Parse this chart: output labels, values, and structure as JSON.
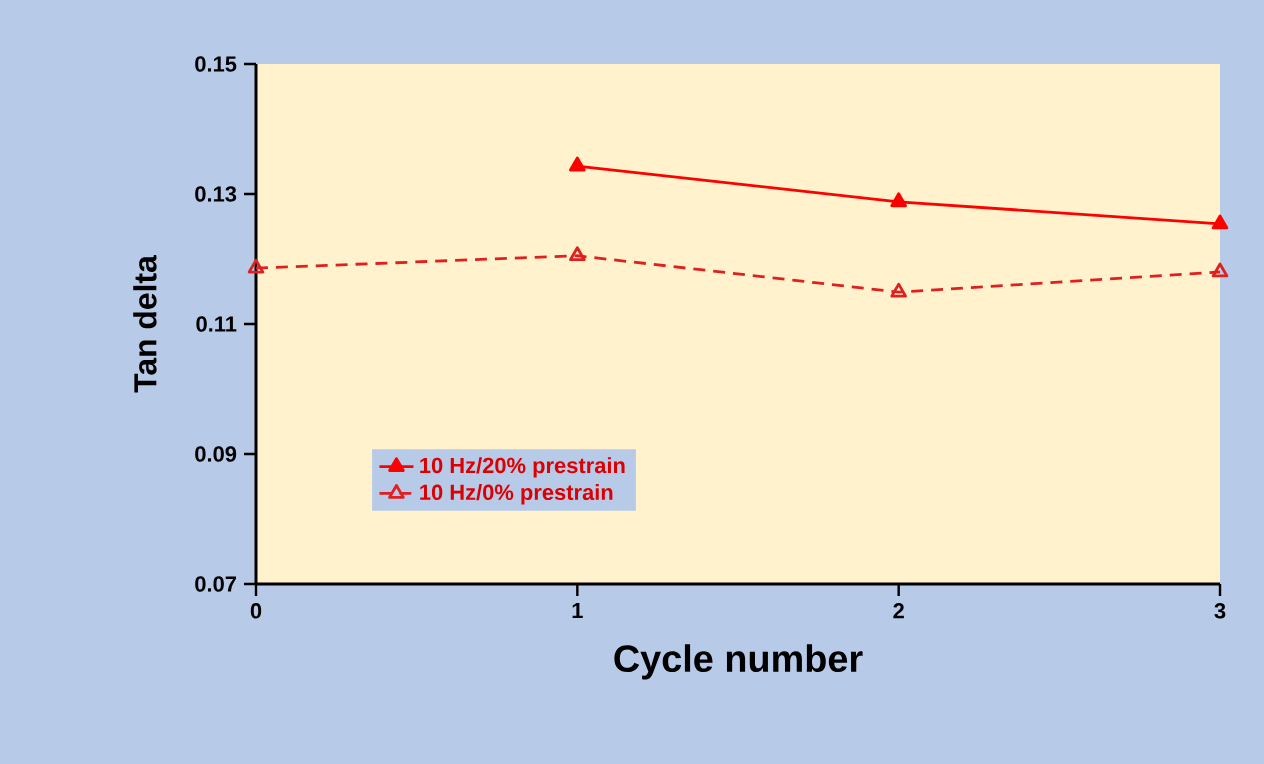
{
  "chart_data": {
    "type": "line",
    "xlabel": "Cycle number",
    "ylabel": "Tan delta",
    "xlim": [
      0,
      3
    ],
    "xticks": [
      0,
      1,
      2,
      3
    ],
    "ylim": [
      0.07,
      0.15
    ],
    "yticks": [
      0.07,
      0.09,
      0.11,
      0.13,
      0.15
    ],
    "x": [
      0,
      1,
      2,
      3
    ],
    "grid": false,
    "legend": "left",
    "series": [
      {
        "name": "10 Hz/20% prestrain",
        "color": "#ff0000",
        "values": [
          null,
          0.1343,
          0.1288,
          0.1254
        ],
        "marker": "triangle",
        "line_style": "solid"
      },
      {
        "name": "10 Hz/0% prestrain",
        "color": "#e02020",
        "values": [
          0.1186,
          0.1205,
          0.1149,
          0.118
        ],
        "marker": "triangle open",
        "line_style": "dashed"
      }
    ]
  }
}
